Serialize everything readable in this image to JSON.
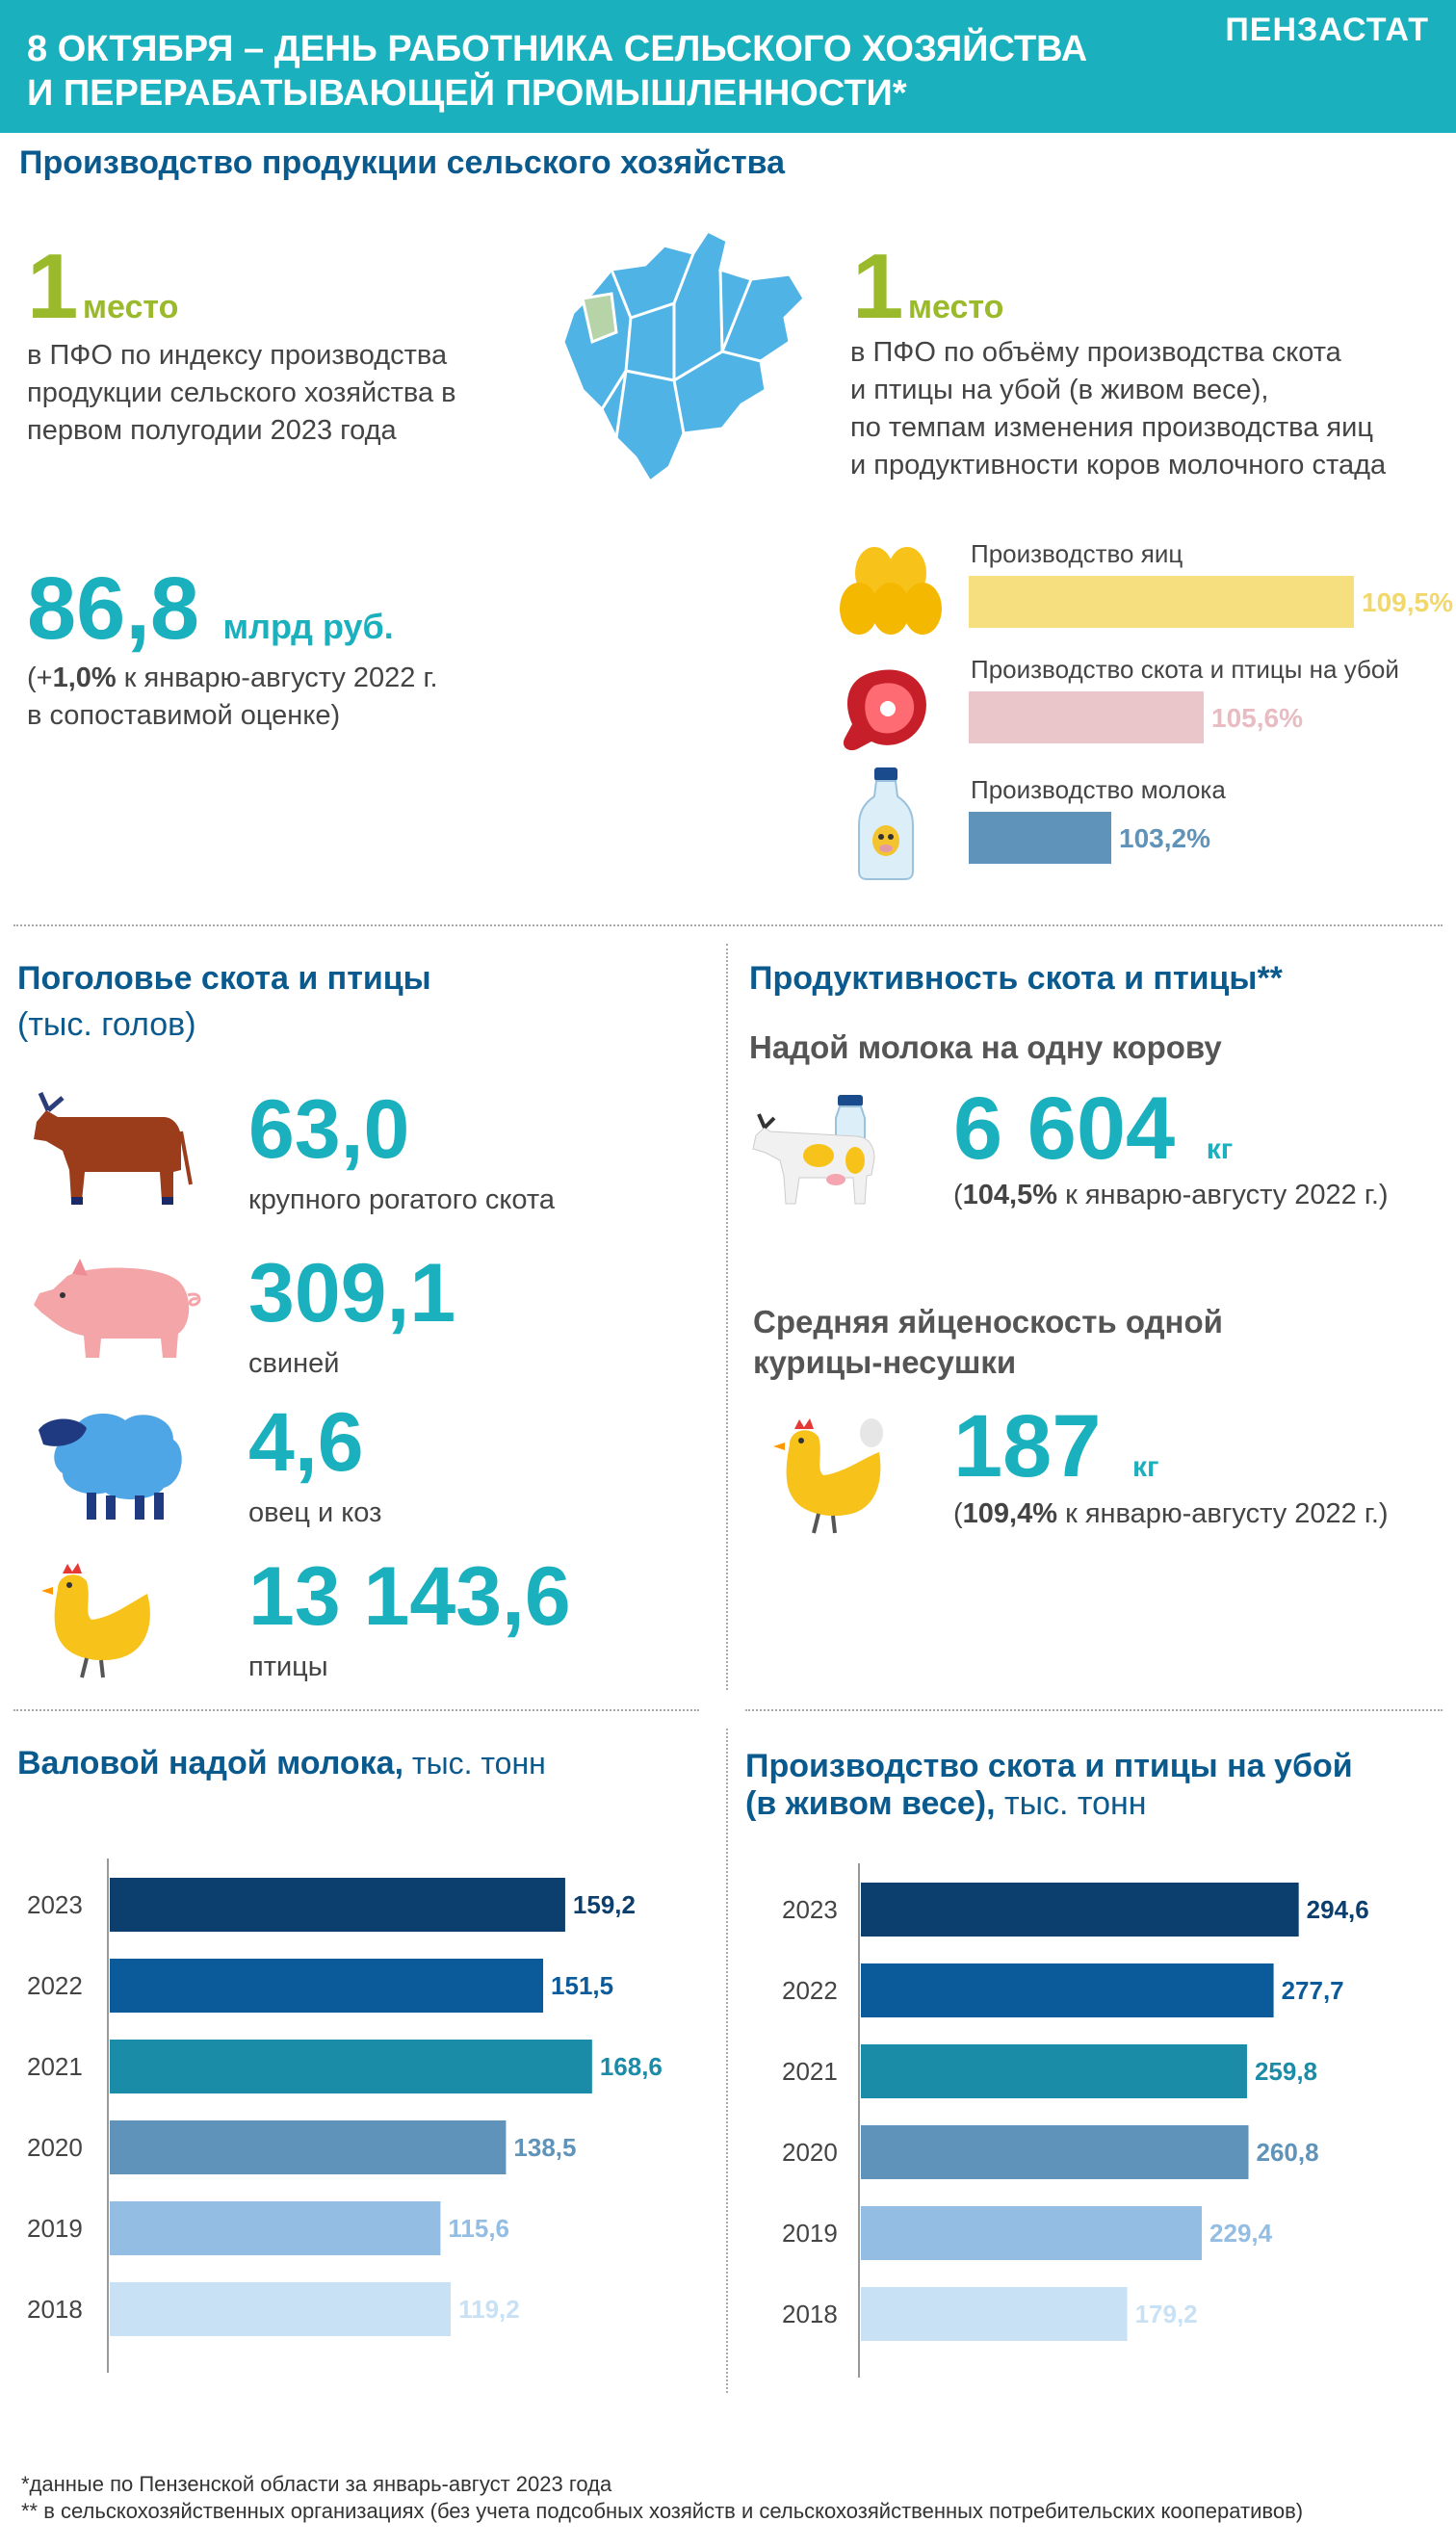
{
  "header": {
    "title_line1": "8 ОКТЯБРЯ – ДЕНЬ РАБОТНИКА СЕЛЬСКОГО ХОЗЯЙСТВА",
    "title_line2": "И ПЕРЕРАБАТЫВАЮЩЕЙ ПРОМЫШЛЕННОСТИ*",
    "brand": "ПЕНЗАСТАТ"
  },
  "production": {
    "section_title": "Производство продукции сельского хозяйства",
    "rank_left": {
      "number": "1",
      "word": "место",
      "lines": [
        "в ПФО по индексу производства",
        "продукции сельского хозяйства в",
        "первом полугодии 2023 года"
      ]
    },
    "rank_right": {
      "number": "1",
      "word": "место",
      "lines": [
        "в ПФО по объёму производства скота",
        "и птицы на убой (в живом весе),",
        "по темпам изменения производства яиц",
        "и продуктивности коров молочного стада"
      ]
    },
    "total": {
      "value": "86,8",
      "unit": "млрд руб.",
      "note_prefix": "(+",
      "note_bold": "1,0%",
      "note_rest": " к январю-августу 2022 г.",
      "note_line2": "в сопоставимой оценке)"
    },
    "indices": [
      {
        "label": "Производство яиц",
        "value_text": "109,5%",
        "value": 109.5,
        "color": "#f5df7f",
        "text_color": "#f2d86a",
        "icon": "eggs-icon"
      },
      {
        "label": "Производство скота и птицы на убой",
        "value_text": "105,6%",
        "value": 105.6,
        "color": "#eac5c9",
        "text_color": "#e8bcc2",
        "icon": "meat-icon"
      },
      {
        "label": "Производство молока",
        "value_text": "103,2%",
        "value": 103.2,
        "color": "#5f93b9",
        "text_color": "#5f93b9",
        "icon": "milk-bottle-icon"
      }
    ]
  },
  "livestock": {
    "title": "Поголовье скота и птицы",
    "subtitle": "(тыс. голов)",
    "items": [
      {
        "value": "63,0",
        "label": "крупного рогатого скота",
        "icon": "cow-icon"
      },
      {
        "value": "309,1",
        "label": "свиней",
        "icon": "pig-icon"
      },
      {
        "value": "4,6",
        "label": "овец и коз",
        "icon": "sheep-icon"
      },
      {
        "value": "13 143,6",
        "label": "птицы",
        "icon": "chicken-icon"
      }
    ]
  },
  "productivity": {
    "title": "Продуктивность скота и птицы**",
    "milk": {
      "heading": "Надой молока на одну корову",
      "value": "6 604",
      "unit": "кг",
      "note_prefix": "(",
      "note_bold": "104,5%",
      "note_rest": " к январю-августу 2022 г.)"
    },
    "eggs": {
      "heading_line1": "Средняя яйценоскость одной",
      "heading_line2": "курицы-несушки",
      "value": "187",
      "unit": "кг",
      "note_prefix": "(",
      "note_bold": "109,4%",
      "note_rest": " к январю-августу 2022 г.)"
    }
  },
  "chart_data": [
    {
      "type": "bar",
      "title": "Валовой надой молока,",
      "title_unit": " тыс. тонн",
      "categories": [
        "2023",
        "2022",
        "2021",
        "2020",
        "2019",
        "2018"
      ],
      "values": [
        159.2,
        151.5,
        168.6,
        138.5,
        115.6,
        119.2
      ],
      "labels": [
        "159,2",
        "151,5",
        "168,6",
        "138,5",
        "115,6",
        "119,2"
      ],
      "colors": [
        "#0c3f6e",
        "#0b5a9a",
        "#1a8ca8",
        "#5f93b9",
        "#93bde3",
        "#c8e1f5"
      ],
      "label_colors": [
        "#0c3f6e",
        "#0b5a9a",
        "#1a8ca8",
        "#5f93b9",
        "#93bde3",
        "#c8e1f5"
      ],
      "xlim": [
        0,
        170
      ]
    },
    {
      "type": "bar",
      "title": "Производство скота и птицы на убой",
      "title_line2": "(в живом весе),",
      "title_unit": " тыс. тонн",
      "categories": [
        "2023",
        "2022",
        "2021",
        "2020",
        "2019",
        "2018"
      ],
      "values": [
        294.6,
        277.7,
        259.8,
        260.8,
        229.4,
        179.2
      ],
      "labels": [
        "294,6",
        "277,7",
        "259,8",
        "260,8",
        "229,4",
        "179,2"
      ],
      "colors": [
        "#0c3f6e",
        "#0b5a9a",
        "#1a8ca8",
        "#5f93b9",
        "#93bde3",
        "#c8e1f5"
      ],
      "label_colors": [
        "#0c3f6e",
        "#0b5a9a",
        "#1a8ca8",
        "#5f93b9",
        "#93bde3",
        "#c8e1f5"
      ],
      "xlim": [
        0,
        300
      ]
    }
  ],
  "footnotes": [
    "*данные по Пензенской области за январь-август 2023 года",
    "** в сельскохозяйственных организациях  (без учета подсобных хозяйств и сельскохозяйственных потребительских кооперативов)"
  ]
}
